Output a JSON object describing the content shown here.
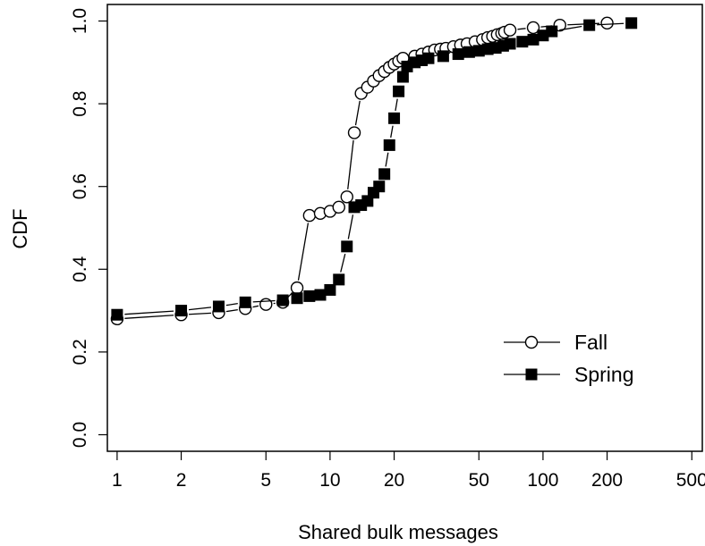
{
  "chart_data": {
    "type": "scatter",
    "xscale": "log",
    "xlabel": "Shared bulk messages",
    "ylabel": "CDF",
    "xticks": [
      1,
      2,
      5,
      10,
      20,
      50,
      100,
      200,
      500
    ],
    "xtick_labels": [
      "1",
      "2",
      "5",
      "10",
      "20",
      "50",
      "100",
      "200",
      "500"
    ],
    "yticks": [
      0.0,
      0.2,
      0.4,
      0.6,
      0.8,
      1.0
    ],
    "ytick_labels": [
      "0.0",
      "0.2",
      "0.4",
      "0.6",
      "0.8",
      "1.0"
    ],
    "xlim": [
      0.9,
      560
    ],
    "ylim": [
      -0.04,
      1.04
    ],
    "grid": false,
    "legend_position": "bottom-right",
    "series": [
      {
        "name": "Fall",
        "marker": "open-circle",
        "color": "#000000",
        "x": [
          1,
          2,
          3,
          4,
          5,
          6,
          7,
          8,
          9,
          10,
          11,
          12,
          13,
          14,
          15,
          16,
          17,
          18,
          19,
          20,
          21,
          22,
          25,
          27,
          29,
          31,
          33,
          35,
          38,
          41,
          44,
          48,
          52,
          55,
          58,
          61,
          64,
          66,
          70,
          90,
          120,
          200
        ],
        "y": [
          0.28,
          0.29,
          0.295,
          0.305,
          0.315,
          0.32,
          0.355,
          0.53,
          0.535,
          0.54,
          0.55,
          0.575,
          0.73,
          0.825,
          0.84,
          0.855,
          0.868,
          0.878,
          0.888,
          0.896,
          0.903,
          0.91,
          0.915,
          0.92,
          0.925,
          0.93,
          0.932,
          0.934,
          0.938,
          0.942,
          0.945,
          0.95,
          0.955,
          0.96,
          0.963,
          0.967,
          0.97,
          0.973,
          0.978,
          0.984,
          0.99,
          0.995
        ]
      },
      {
        "name": "Spring",
        "marker": "filled-square",
        "color": "#000000",
        "x": [
          1,
          2,
          3,
          4,
          6,
          7,
          8,
          9,
          10,
          11,
          12,
          13,
          14,
          15,
          16,
          17,
          18,
          19,
          20,
          21,
          22,
          23,
          25,
          27,
          29,
          34,
          40,
          45,
          50,
          55,
          60,
          65,
          70,
          80,
          90,
          100,
          110,
          165,
          260
        ],
        "y": [
          0.29,
          0.3,
          0.31,
          0.32,
          0.325,
          0.33,
          0.335,
          0.338,
          0.35,
          0.375,
          0.455,
          0.55,
          0.555,
          0.565,
          0.585,
          0.6,
          0.63,
          0.7,
          0.765,
          0.83,
          0.865,
          0.89,
          0.9,
          0.905,
          0.91,
          0.915,
          0.92,
          0.925,
          0.928,
          0.932,
          0.935,
          0.94,
          0.945,
          0.95,
          0.955,
          0.965,
          0.975,
          0.99,
          0.995
        ]
      }
    ]
  }
}
